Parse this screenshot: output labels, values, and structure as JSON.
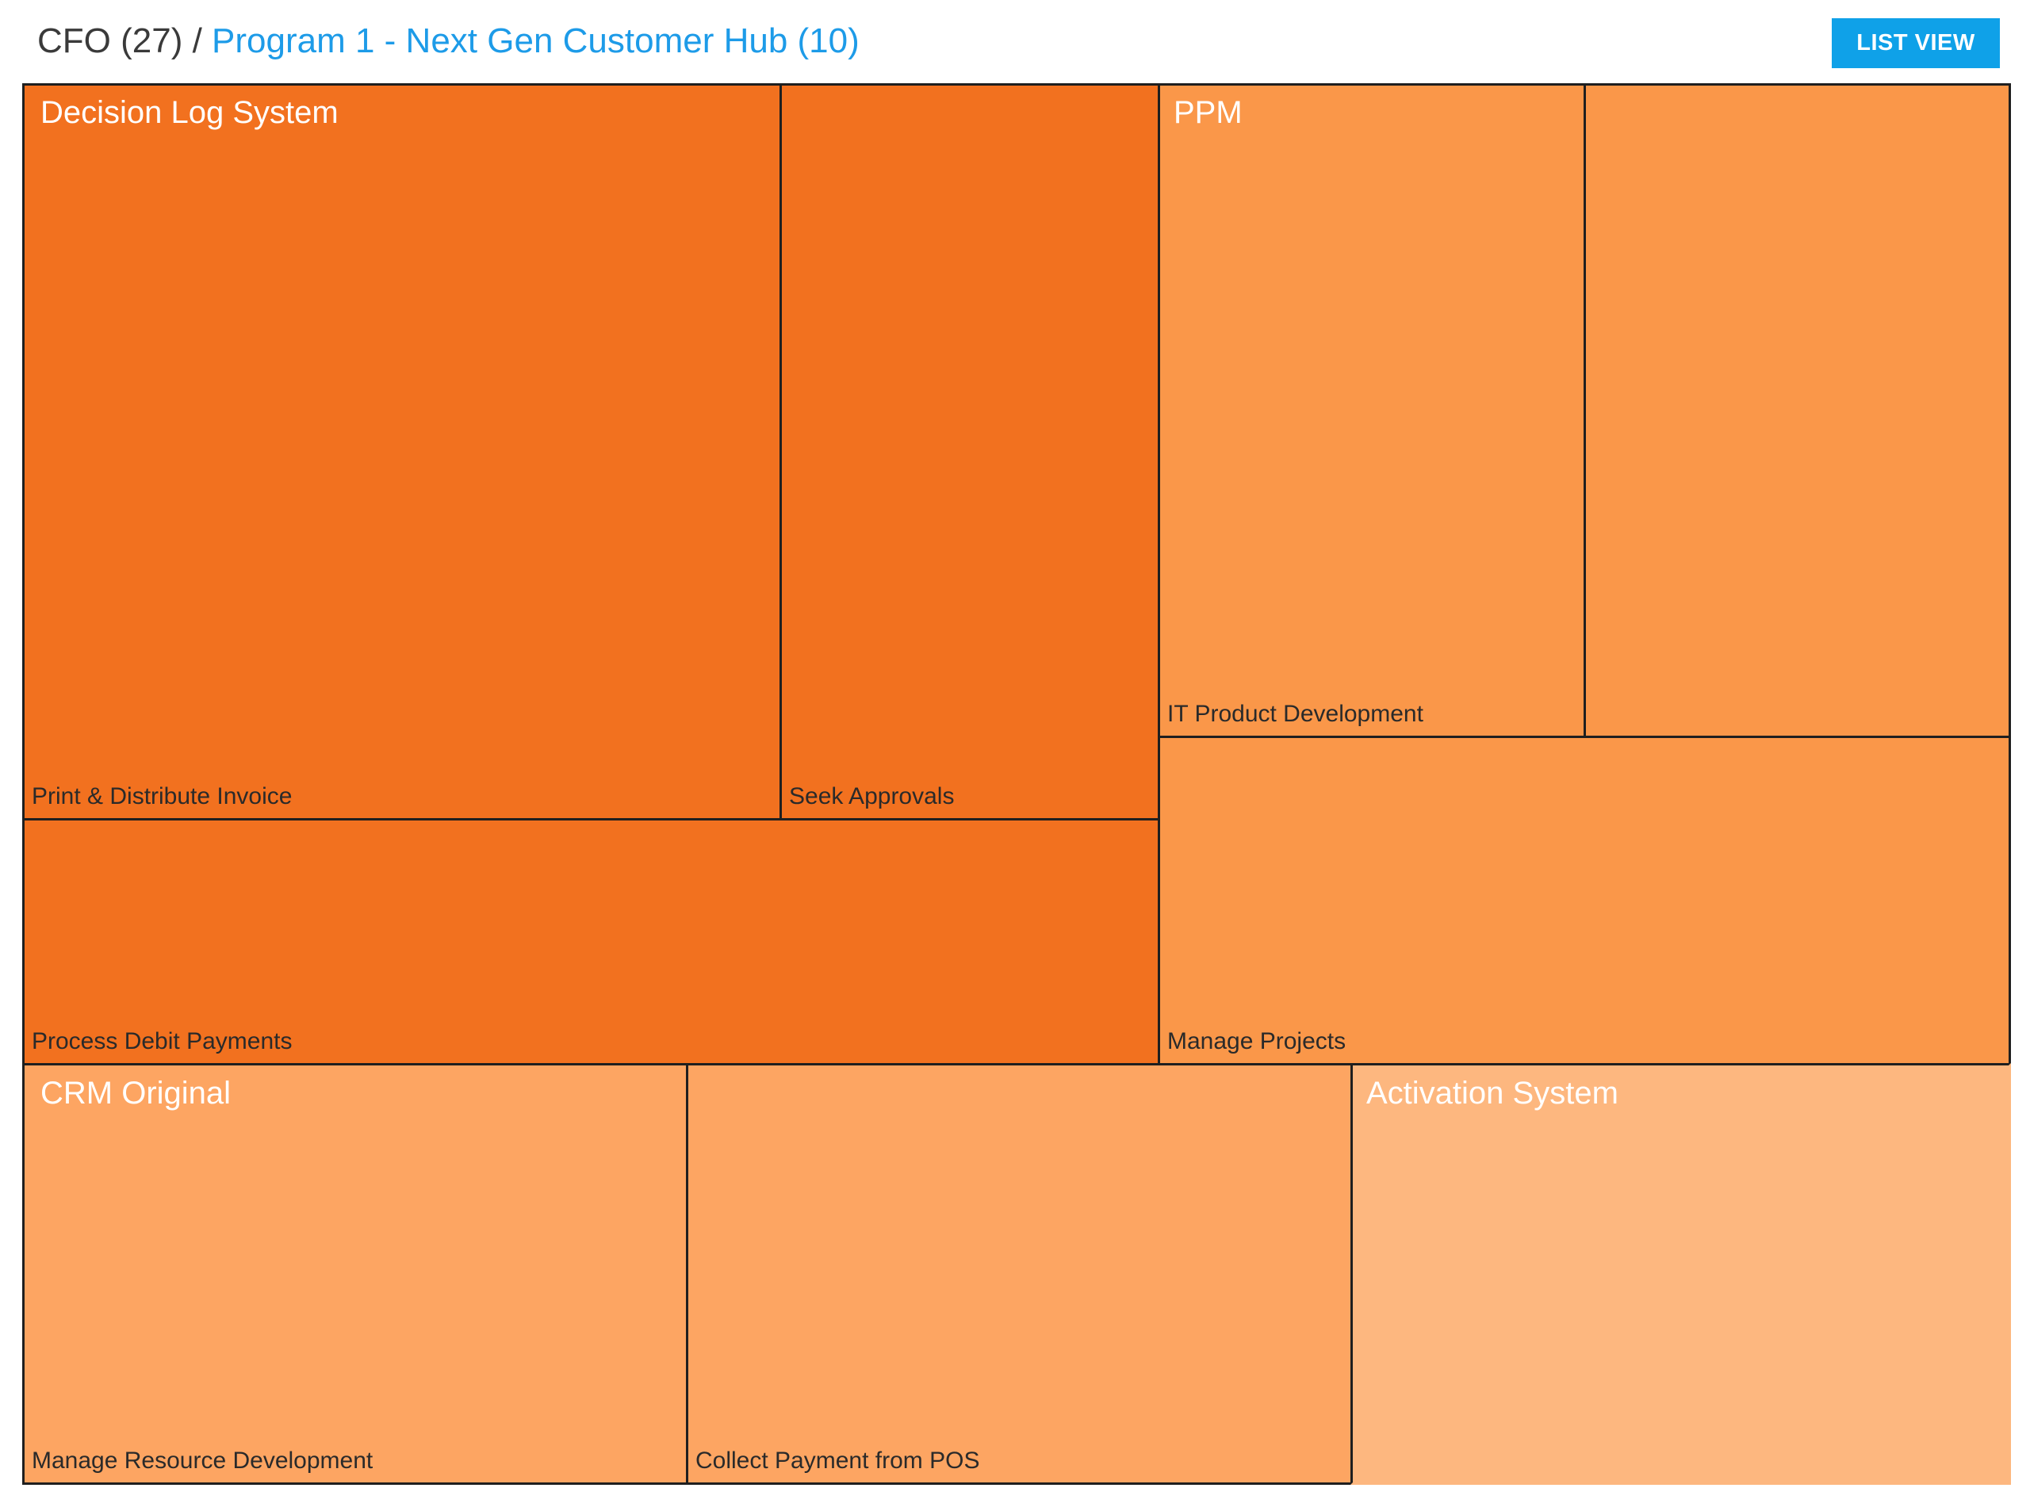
{
  "breadcrumb": {
    "root": "CFO (27)",
    "separator": " / ",
    "current": "Program 1 - Next Gen Customer Hub (10)"
  },
  "toolbar": {
    "list_view_label": "LIST VIEW"
  },
  "colors": {
    "link": "#1d9be8",
    "button": "#0fa1e8",
    "tile_dark": "#f2711f",
    "tile_mid": "#fa9749",
    "tile_light": "#fda562",
    "tile_lighter": "#fdb77f",
    "border": "#1f1f1f"
  },
  "treemap": {
    "groups": [
      {
        "title": "Decision Log System",
        "tiles": [
          {
            "label": "Print & Distribute Invoice"
          },
          {
            "label": "Seek Approvals"
          },
          {
            "label": "Process Debit Payments"
          }
        ]
      },
      {
        "title": "PPM",
        "tiles": [
          {
            "label": "IT Product Development"
          },
          {
            "label": ""
          },
          {
            "label": "Manage Projects"
          }
        ]
      },
      {
        "title": "CRM Original",
        "tiles": [
          {
            "label": "Manage Resource Development"
          },
          {
            "label": "Collect Payment from POS"
          }
        ]
      },
      {
        "title": "Activation System",
        "tiles": [
          {
            "label": ""
          }
        ]
      }
    ]
  }
}
